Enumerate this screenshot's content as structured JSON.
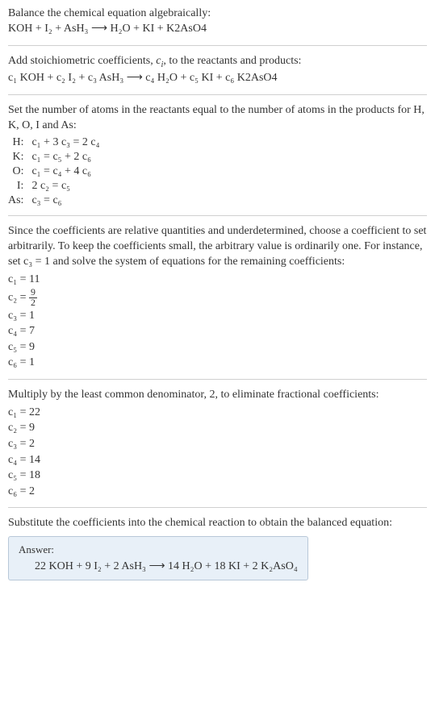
{
  "colors": {
    "text": "#333333",
    "rule": "#d0d0d0",
    "answer_bg": "#e8f0f8",
    "answer_border": "#b8c8d8"
  },
  "typography": {
    "body_fontsize": 14,
    "answer_label_fontsize": 13
  },
  "section1": {
    "line1": "Balance the chemical equation algebraically:",
    "eq": "KOH + I₂ + AsH₃  ⟶  H₂O + KI + K2AsO4"
  },
  "section2": {
    "line1_pre": "Add stoichiometric coefficients, ",
    "line1_ci": "cᵢ",
    "line1_post": ", to the reactants and products:",
    "eq": "c₁ KOH + c₂ I₂ + c₃ AsH₃  ⟶  c₄ H₂O + c₅ KI + c₆ K2AsO4"
  },
  "section3": {
    "intro": "Set the number of atoms in the reactants equal to the number of atoms in the products for H, K, O, I and As:",
    "rows": [
      {
        "label": "H:",
        "eq": "c₁ + 3 c₃ = 2 c₄"
      },
      {
        "label": "K:",
        "eq": "c₁ = c₅ + 2 c₆"
      },
      {
        "label": "O:",
        "eq": "c₁ = c₄ + 4 c₆"
      },
      {
        "label": "I:",
        "eq": "2 c₂ = c₅"
      },
      {
        "label": "As:",
        "eq": "c₃ = c₆"
      }
    ]
  },
  "section4": {
    "intro": "Since the coefficients are relative quantities and underdetermined, choose a coefficient to set arbitrarily. To keep the coefficients small, the arbitrary value is ordinarily one. For instance, set c₃ = 1 and solve the system of equations for the remaining coefficients:",
    "coeffs": {
      "c1": "c₁ = 11",
      "c2_pre": "c₂ = ",
      "c2_num": "9",
      "c2_den": "2",
      "c3": "c₃ = 1",
      "c4": "c₄ = 7",
      "c5": "c₅ = 9",
      "c6": "c₆ = 1"
    }
  },
  "section5": {
    "intro": "Multiply by the least common denominator, 2, to eliminate fractional coefficients:",
    "coeffs": [
      "c₁ = 22",
      "c₂ = 9",
      "c₃ = 2",
      "c₄ = 14",
      "c₅ = 18",
      "c₆ = 2"
    ]
  },
  "section6": {
    "intro": "Substitute the coefficients into the chemical reaction to obtain the balanced equation:",
    "answer_label": "Answer:",
    "answer_eq": "22 KOH + 9 I₂ + 2 AsH₃  ⟶  14 H₂O + 18 KI + 2 K₂AsO₄"
  }
}
